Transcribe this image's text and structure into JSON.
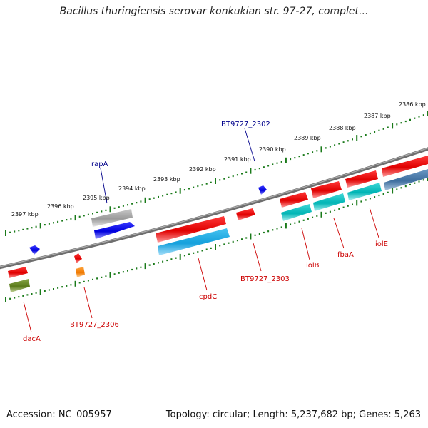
{
  "title": "Bacillus thuringiensis serovar konkukian str. 97-27, complet...",
  "footer": {
    "accession": "Accession: NC_005957",
    "topology": "Topology: circular; Length: 5,237,682 bp; Genes: 5,263"
  },
  "ticks": [
    {
      "label": "2397 kbp"
    },
    {
      "label": "2396 kbp"
    },
    {
      "label": "2395 kbp"
    },
    {
      "label": "2394 kbp"
    },
    {
      "label": "2393 kbp"
    },
    {
      "label": "2392 kbp"
    },
    {
      "label": "2391 kbp"
    },
    {
      "label": "2390 kbp"
    },
    {
      "label": "2389 kbp"
    },
    {
      "label": "2388 kbp"
    },
    {
      "label": "2387 kbp"
    },
    {
      "label": "2386 kbp"
    }
  ],
  "gene_labels": {
    "rapA": "rapA",
    "bt2302": "BT9727_2302",
    "dacA": "dacA",
    "bt2306": "BT9727_2306",
    "cpdC": "cpdC",
    "bt2303": "BT9727_2303",
    "iolB": "iolB",
    "fbaA": "fbaA",
    "iolE": "iolE"
  },
  "colors": {
    "backbone": "#777777",
    "tick": "#1a7a1a",
    "top_label": "#00008b",
    "bottom_label": "#cc0000",
    "gene_red": "#ee0000",
    "gene_blue": "#0000ee",
    "gene_cyan": "#00c8c8",
    "gene_skyblue": "#1eb4e6",
    "gene_steel": "#4a7fb0",
    "gene_grey": "#b0b0b0",
    "gene_olive": "#6b8e23",
    "gene_orange": "#ff8c00"
  }
}
